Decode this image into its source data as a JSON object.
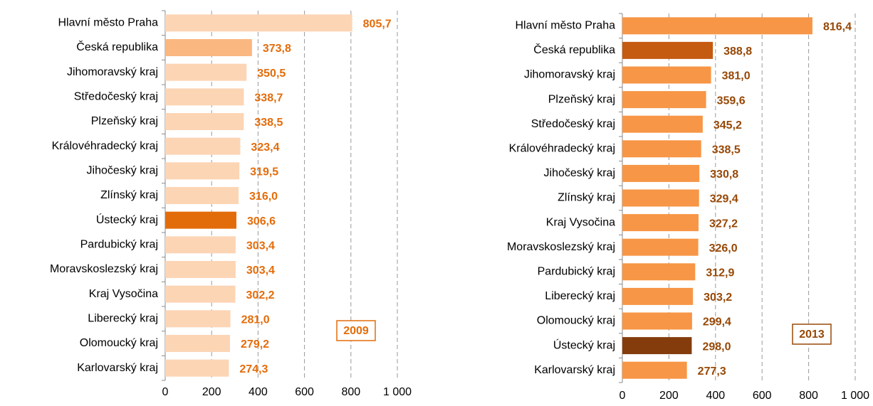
{
  "chart_data": [
    {
      "type": "bar",
      "orientation": "horizontal",
      "annotation": "2009",
      "categories": [
        "Hlavní město Praha",
        "Česká republika",
        "Jihomoravský kraj",
        "Středočeský kraj",
        "Plzeňský kraj",
        "Královéhradecký kraj",
        "Jihočeský kraj",
        "Zlínský kraj",
        "Ústecký kraj",
        "Pardubický kraj",
        "Moravskoslezský kraj",
        "Kraj Vysočina",
        "Liberecký kraj",
        "Olomoucký kraj",
        "Karlovarský kraj"
      ],
      "values": [
        805.7,
        373.8,
        350.5,
        338.7,
        338.5,
        323.4,
        319.5,
        316.0,
        306.6,
        303.4,
        303.4,
        302.2,
        281.0,
        279.2,
        274.3
      ],
      "value_labels": [
        "805,7",
        "373,8",
        "350,5",
        "338,7",
        "338,5",
        "323,4",
        "319,5",
        "316,0",
        "306,6",
        "303,4",
        "303,4",
        "302,2",
        "281,0",
        "279,2",
        "274,3"
      ],
      "colors": [
        "#fcd5b5",
        "#fab77f",
        "#fcd5b5",
        "#fcd5b5",
        "#fcd5b5",
        "#fcd5b5",
        "#fcd5b5",
        "#fcd5b5",
        "#e36c0a",
        "#fcd5b5",
        "#fcd5b5",
        "#fcd5b5",
        "#fcd5b5",
        "#fcd5b5",
        "#fcd5b5"
      ],
      "label_color": "#e46c0a",
      "xlim": [
        0,
        1000
      ],
      "xticks": [
        0,
        200,
        400,
        600,
        800,
        {
          "value": 1000,
          "label": "1 000"
        }
      ],
      "grid": true
    },
    {
      "type": "bar",
      "orientation": "horizontal",
      "annotation": "2013",
      "categories": [
        "Hlavní město Praha",
        "Česká republika",
        "Jihomoravský kraj",
        "Plzeňský kraj",
        "Středočeský kraj",
        "Královéhradecký kraj",
        "Jihočeský kraj",
        "Zlínský kraj",
        "Kraj Vysočina",
        "Moravskoslezský kraj",
        "Pardubický kraj",
        "Liberecký kraj",
        "Olomoucký kraj",
        "Ústecký kraj",
        "Karlovarský kraj"
      ],
      "values": [
        816.4,
        388.8,
        381.0,
        359.6,
        345.2,
        338.5,
        330.8,
        329.4,
        327.2,
        326.0,
        312.9,
        303.2,
        299.4,
        298.0,
        277.3
      ],
      "value_labels": [
        "816,4",
        "388,8",
        "381,0",
        "359,6",
        "345,2",
        "338,5",
        "330,8",
        "329,4",
        "327,2",
        "326,0",
        "312,9",
        "303,2",
        "299,4",
        "298,0",
        "277,3"
      ],
      "colors": [
        "#f79646",
        "#c55a11",
        "#f79646",
        "#f79646",
        "#f79646",
        "#f79646",
        "#f79646",
        "#f79646",
        "#f79646",
        "#f79646",
        "#f79646",
        "#f79646",
        "#f79646",
        "#843c0c",
        "#f79646"
      ],
      "label_color": "#974806",
      "xlim": [
        0,
        1000
      ],
      "xticks": [
        0,
        200,
        400,
        600,
        800,
        {
          "value": 1000,
          "label": "1 000"
        }
      ],
      "grid": true
    }
  ]
}
